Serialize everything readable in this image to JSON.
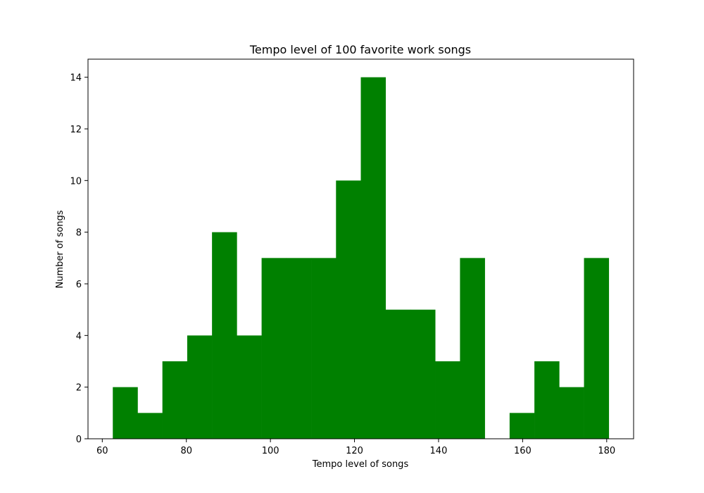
{
  "chart_data": {
    "type": "bar",
    "title": "Tempo level of 100 favorite work songs",
    "xlabel": "Tempo level of songs",
    "ylabel": "Number of songs",
    "bar_color": "#008000",
    "bins": [
      {
        "start": 62.5,
        "end": 68.4,
        "count": 2
      },
      {
        "start": 68.4,
        "end": 74.3,
        "count": 1
      },
      {
        "start": 74.3,
        "end": 80.2,
        "count": 3
      },
      {
        "start": 80.2,
        "end": 86.1,
        "count": 4
      },
      {
        "start": 86.1,
        "end": 92.0,
        "count": 8
      },
      {
        "start": 92.0,
        "end": 97.9,
        "count": 4
      },
      {
        "start": 97.9,
        "end": 103.8,
        "count": 7
      },
      {
        "start": 103.8,
        "end": 109.7,
        "count": 7
      },
      {
        "start": 109.7,
        "end": 115.6,
        "count": 7
      },
      {
        "start": 115.6,
        "end": 121.5,
        "count": 10
      },
      {
        "start": 121.5,
        "end": 127.4,
        "count": 14
      },
      {
        "start": 127.4,
        "end": 133.3,
        "count": 5
      },
      {
        "start": 133.3,
        "end": 139.2,
        "count": 5
      },
      {
        "start": 139.2,
        "end": 145.1,
        "count": 3
      },
      {
        "start": 145.1,
        "end": 151.0,
        "count": 7
      },
      {
        "start": 151.0,
        "end": 156.9,
        "count": 0
      },
      {
        "start": 156.9,
        "end": 162.8,
        "count": 1
      },
      {
        "start": 162.8,
        "end": 168.7,
        "count": 3
      },
      {
        "start": 168.7,
        "end": 174.6,
        "count": 2
      },
      {
        "start": 174.6,
        "end": 180.5,
        "count": 7
      }
    ],
    "xlim": [
      56.6,
      186.4
    ],
    "ylim": [
      0,
      14.7
    ],
    "x_ticks": [
      60,
      80,
      100,
      120,
      140,
      160,
      180
    ],
    "y_ticks": [
      0,
      2,
      4,
      6,
      8,
      10,
      12,
      14
    ],
    "grid": false
  }
}
